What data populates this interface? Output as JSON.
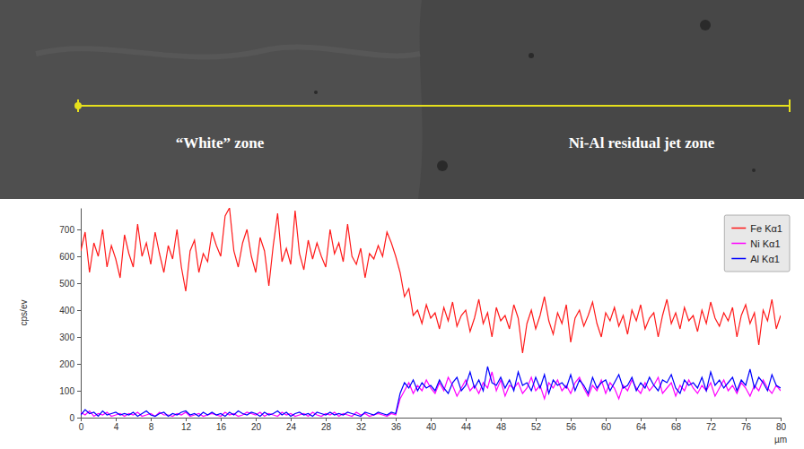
{
  "chart_data": {
    "type": "line",
    "x_label": "µm",
    "y_label": "cps/ev",
    "annotations": [
      "“White” zone",
      "Ni-Al residual jet zone"
    ],
    "legend": "upper right",
    "xlim": [
      0,
      80
    ],
    "xticks": [
      0,
      4,
      8,
      12,
      16,
      20,
      24,
      28,
      32,
      36,
      40,
      44,
      48,
      52,
      56,
      60,
      64,
      68,
      72,
      76,
      80
    ],
    "ylim": [
      0,
      780
    ],
    "yticks": [
      0,
      100,
      200,
      300,
      400,
      500,
      600,
      700
    ],
    "x": [
      0,
      0.5,
      1,
      1.5,
      2,
      2.5,
      3,
      3.5,
      4,
      4.5,
      5,
      5.5,
      6,
      6.5,
      7,
      7.5,
      8,
      8.5,
      9,
      9.5,
      10,
      10.5,
      11,
      11.5,
      12,
      12.5,
      13,
      13.5,
      14,
      14.5,
      15,
      15.5,
      16,
      16.5,
      17,
      17.5,
      18,
      18.5,
      19,
      19.5,
      20,
      20.5,
      21,
      21.5,
      22,
      22.5,
      23,
      23.5,
      24,
      24.5,
      25,
      25.5,
      26,
      26.5,
      27,
      27.5,
      28,
      28.5,
      29,
      29.5,
      30,
      30.5,
      31,
      31.5,
      32,
      32.5,
      33,
      33.5,
      34,
      34.5,
      35,
      35.5,
      36,
      36.5,
      37,
      37.5,
      38,
      38.5,
      39,
      39.5,
      40,
      40.5,
      41,
      41.5,
      42,
      42.5,
      43,
      43.5,
      44,
      44.5,
      45,
      45.5,
      46,
      46.5,
      47,
      47.5,
      48,
      48.5,
      49,
      49.5,
      50,
      50.5,
      51,
      51.5,
      52,
      52.5,
      53,
      53.5,
      54,
      54.5,
      55,
      55.5,
      56,
      56.5,
      57,
      57.5,
      58,
      58.5,
      59,
      59.5,
      60,
      60.5,
      61,
      61.5,
      62,
      62.5,
      63,
      63.5,
      64,
      64.5,
      65,
      65.5,
      66,
      66.5,
      67,
      67.5,
      68,
      68.5,
      69,
      69.5,
      70,
      70.5,
      71,
      71.5,
      72,
      72.5,
      73,
      73.5,
      74,
      74.5,
      75,
      75.5,
      76,
      76.5,
      77,
      77.5,
      78,
      78.5,
      79,
      79.5,
      80
    ],
    "series": [
      {
        "name": "Fe Kα1",
        "color": "#ff1a1a",
        "values": [
          620,
          690,
          540,
          650,
          600,
          700,
          560,
          640,
          590,
          520,
          680,
          610,
          560,
          720,
          600,
          650,
          570,
          690,
          610,
          540,
          640,
          590,
          700,
          560,
          470,
          620,
          660,
          540,
          610,
          580,
          690,
          640,
          600,
          750,
          780,
          620,
          560,
          650,
          700,
          600,
          540,
          670,
          620,
          490,
          640,
          760,
          580,
          630,
          570,
          770,
          610,
          550,
          660,
          590,
          650,
          600,
          560,
          700,
          610,
          650,
          580,
          720,
          600,
          570,
          630,
          520,
          610,
          590,
          640,
          600,
          690,
          650,
          600,
          540,
          450,
          480,
          380,
          400,
          350,
          420,
          370,
          390,
          330,
          410,
          360,
          430,
          340,
          380,
          400,
          320,
          370,
          440,
          350,
          390,
          300,
          410,
          360,
          380,
          330,
          420,
          370,
          240,
          350,
          400,
          330,
          380,
          450,
          360,
          310,
          390,
          350,
          420,
          280,
          370,
          400,
          340,
          380,
          430,
          350,
          300,
          390,
          360,
          410,
          340,
          380,
          310,
          400,
          360,
          420,
          330,
          370,
          390,
          300,
          380,
          440,
          350,
          390,
          330,
          410,
          360,
          380,
          320,
          400,
          350,
          430,
          370,
          340,
          390,
          360,
          410,
          300,
          380,
          420,
          350,
          390,
          270,
          400,
          360,
          440,
          330,
          380
        ]
      },
      {
        "name": "Ni Kα1",
        "color": "#ff00ff",
        "values": [
          20,
          10,
          25,
          5,
          15,
          10,
          20,
          5,
          10,
          15,
          5,
          15,
          10,
          20,
          5,
          10,
          15,
          5,
          20,
          10,
          10,
          5,
          15,
          10,
          20,
          5,
          10,
          15,
          5,
          10,
          15,
          10,
          5,
          20,
          10,
          15,
          5,
          10,
          20,
          15,
          10,
          20,
          5,
          15,
          10,
          5,
          20,
          10,
          15,
          5,
          10,
          15,
          5,
          20,
          10,
          5,
          15,
          10,
          20,
          5,
          15,
          10,
          5,
          20,
          10,
          15,
          5,
          10,
          15,
          10,
          5,
          15,
          10,
          70,
          100,
          130,
          90,
          120,
          100,
          140,
          110,
          90,
          130,
          100,
          150,
          120,
          80,
          110,
          140,
          100,
          120,
          90,
          130,
          110,
          170,
          100,
          140,
          80,
          120,
          110,
          130,
          90,
          110,
          150,
          100,
          120,
          70,
          130,
          110,
          140,
          100,
          120,
          90,
          130,
          150,
          110,
          80,
          120,
          100,
          140,
          90,
          130,
          110,
          70,
          120,
          100,
          140,
          110,
          90,
          130,
          100,
          120,
          150,
          90,
          110,
          130,
          80,
          120,
          100,
          140,
          110,
          90,
          120,
          100,
          130,
          80,
          110,
          140,
          100,
          120,
          90,
          130,
          110,
          80,
          120,
          100,
          140,
          110,
          90,
          120,
          100
        ]
      },
      {
        "name": "Al Kα1",
        "color": "#0000ff",
        "values": [
          10,
          30,
          15,
          20,
          5,
          25,
          10,
          15,
          20,
          10,
          15,
          10,
          20,
          5,
          15,
          25,
          10,
          5,
          15,
          20,
          5,
          15,
          10,
          20,
          25,
          10,
          15,
          5,
          20,
          10,
          20,
          10,
          15,
          5,
          20,
          10,
          25,
          15,
          10,
          20,
          15,
          5,
          20,
          10,
          15,
          25,
          10,
          20,
          5,
          15,
          20,
          10,
          15,
          5,
          20,
          15,
          10,
          20,
          10,
          15,
          10,
          20,
          15,
          10,
          5,
          20,
          15,
          10,
          20,
          15,
          10,
          20,
          15,
          90,
          130,
          110,
          140,
          100,
          130,
          110,
          120,
          100,
          140,
          110,
          90,
          130,
          150,
          100,
          120,
          170,
          110,
          140,
          100,
          190,
          130,
          120,
          150,
          110,
          140,
          100,
          170,
          120,
          130,
          100,
          150,
          110,
          160,
          90,
          140,
          120,
          130,
          110,
          160,
          100,
          140,
          120,
          90,
          150,
          110,
          130,
          140,
          100,
          130,
          160,
          110,
          120,
          150,
          100,
          130,
          110,
          150,
          120,
          100,
          140,
          130,
          160,
          110,
          90,
          140,
          120,
          130,
          110,
          150,
          100,
          170,
          120,
          140,
          110,
          130,
          150,
          100,
          140,
          120,
          180,
          110,
          150,
          130,
          100,
          160,
          120,
          110
        ]
      }
    ]
  }
}
